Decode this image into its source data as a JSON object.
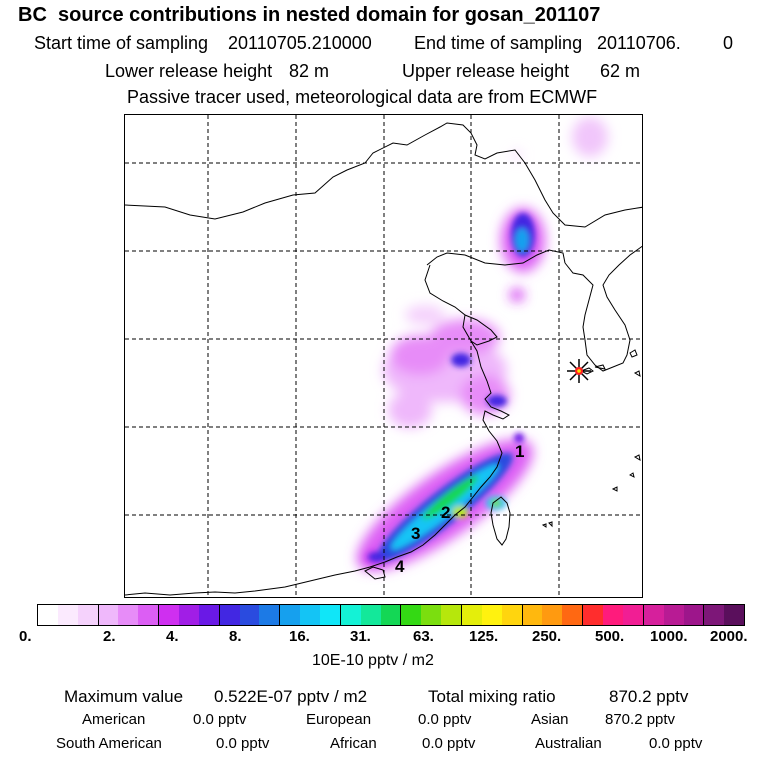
{
  "title": "BC  source contributions in nested domain for gosan_201107",
  "header": {
    "start_label": "Start time of sampling",
    "start_value": "20110705.210000",
    "end_label": "End time of sampling",
    "end_value": "20110706.",
    "end_suffix": "0",
    "lower_label": "Lower release height",
    "lower_value": "82 m",
    "upper_label": "Upper release height",
    "upper_value": "62 m",
    "note": "Passive tracer used, meteorological data are from ECMWF"
  },
  "map": {
    "grid": "dashed",
    "receptor_marker": "star-marker-icon",
    "source_labels": [
      "1",
      "2",
      "3",
      "4"
    ]
  },
  "colorbar": {
    "colors": [
      "#ffffff",
      "#fbeafe",
      "#f5d2fc",
      "#efb8fb",
      "#e78cf8",
      "#dc5ef4",
      "#cf2ff0",
      "#a11ee6",
      "#6a19e6",
      "#4227e2",
      "#2a4bdf",
      "#1c7ae6",
      "#16a0ee",
      "#14c4f5",
      "#10e6f8",
      "#14f2d6",
      "#13e89a",
      "#14d755",
      "#34d914",
      "#7bde0f",
      "#b6e70c",
      "#e4ee0b",
      "#fff20f",
      "#ffd50e",
      "#ffb80e",
      "#ff9a10",
      "#ff6812",
      "#ff2d2d",
      "#ff1b7c",
      "#f11e94",
      "#d6209c",
      "#b81b94",
      "#9d168b",
      "#7d1778",
      "#5a0f5c"
    ],
    "tick_labels": [
      "0.",
      "2.",
      "4.",
      "8.",
      "16.",
      "31.",
      "63.",
      "125.",
      "250.",
      "500.",
      "1000.",
      "2000."
    ],
    "units": "10E-10 pptv / m2"
  },
  "stats": {
    "max_label": "Maximum value",
    "max_value": "0.522E-07 pptv / m2",
    "total_label": "Total mixing ratio",
    "total_value": "870.2 pptv",
    "regions": [
      {
        "name": "American",
        "value": "0.0 pptv"
      },
      {
        "name": "European",
        "value": "0.0 pptv"
      },
      {
        "name": "Asian",
        "value": "870.2 pptv"
      },
      {
        "name": "South American",
        "value": "0.0 pptv"
      },
      {
        "name": "African",
        "value": "0.0 pptv"
      },
      {
        "name": "Australian",
        "value": "0.0 pptv"
      }
    ]
  }
}
